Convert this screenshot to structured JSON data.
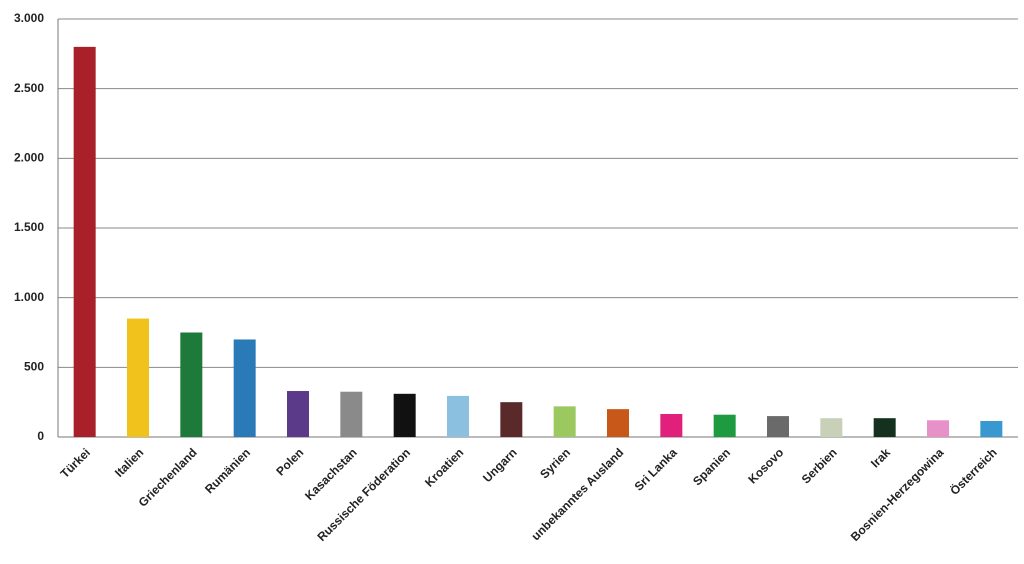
{
  "chart_data": {
    "type": "bar",
    "categories": [
      "Türkei",
      "Italien",
      "Griechenland",
      "Rumänien",
      "Polen",
      "Kasachstan",
      "Russische Föderation",
      "Kroatien",
      "Ungarn",
      "Syrien",
      "unbekanntes Ausland",
      "Sri Lanka",
      "Spanien",
      "Kosovo",
      "Serbien",
      "Irak",
      "Bosnien-Herzegowina",
      "Österreich"
    ],
    "values": [
      2800,
      850,
      750,
      700,
      330,
      325,
      310,
      295,
      250,
      220,
      200,
      165,
      160,
      150,
      135,
      135,
      120,
      115
    ],
    "colors": [
      "#a8202a",
      "#f2c21c",
      "#1e7a3a",
      "#2a7ab8",
      "#5c3a8a",
      "#8a8a8a",
      "#111111",
      "#8bc0e0",
      "#5a2a2a",
      "#9cc860",
      "#c8581a",
      "#e0207a",
      "#1e9a40",
      "#6a6a6a",
      "#c8d0b8",
      "#14301e",
      "#e890c8",
      "#3a98d0"
    ],
    "ylim": [
      0,
      3000
    ],
    "yticks": [
      0,
      500,
      {
        "value": 1000,
        "label": "1.000"
      },
      {
        "value": 1500,
        "label": "1.500"
      },
      {
        "value": 2000,
        "label": "2.000"
      },
      {
        "value": 2500,
        "label": "2.500"
      },
      {
        "value": 3000,
        "label": "3.000"
      }
    ],
    "grid": true
  }
}
